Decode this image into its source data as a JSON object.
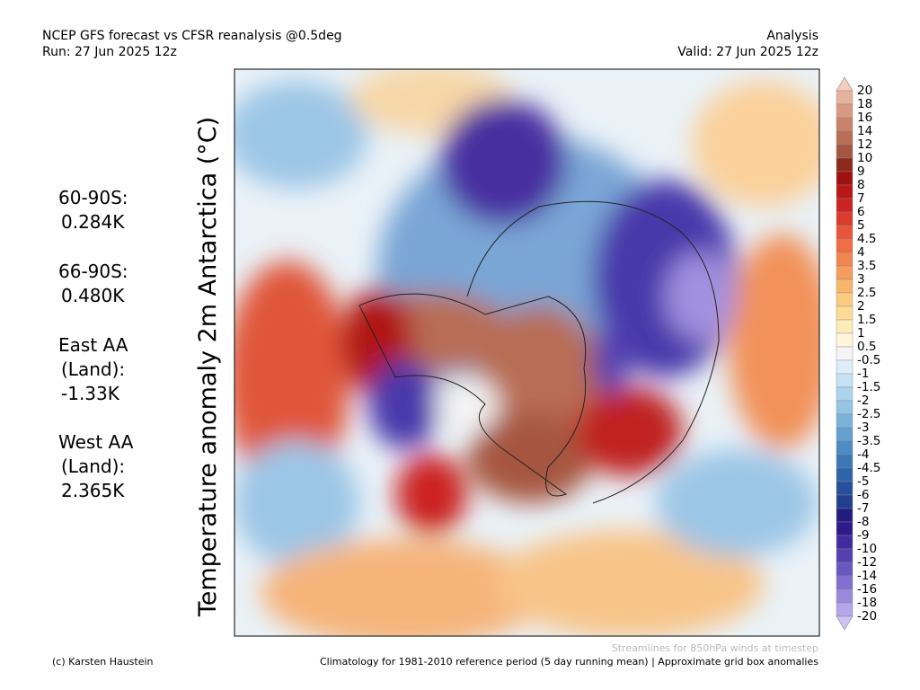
{
  "header": {
    "title": "NCEP GFS forecast vs CFSR reanalysis @0.5deg",
    "run": "Run: 27 Jun 2025 12z",
    "kind": "Analysis",
    "valid": "Valid: 27 Jun 2025 12z"
  },
  "vertical_title": "Temperature anomaly 2m Antarctica (°C)",
  "stats": [
    {
      "lines": [
        "60-90S:",
        "0.284K"
      ]
    },
    {
      "lines": [
        "66-90S:",
        "0.480K"
      ]
    },
    {
      "lines": [
        "East AA",
        "(Land):",
        "-1.33K"
      ]
    },
    {
      "lines": [
        "West AA",
        "(Land):",
        "2.365K"
      ]
    }
  ],
  "colorbar": {
    "labels": [
      "20",
      "18",
      "16",
      "14",
      "12",
      "10",
      "9",
      "8",
      "7",
      "6",
      "5",
      "4.5",
      "4",
      "3.5",
      "3",
      "2.5",
      "2",
      "1.5",
      "1",
      "0.5",
      "-0.5",
      "-1",
      "-1.5",
      "-2",
      "-2.5",
      "-3",
      "-3.5",
      "-4",
      "-4.5",
      "-5",
      "-6",
      "-7",
      "-8",
      "-9",
      "-10",
      "-12",
      "-14",
      "-16",
      "-18",
      "-20"
    ],
    "colors": [
      "#f5cdbd",
      "#e6b29e",
      "#d89a83",
      "#c9836b",
      "#b86d55",
      "#a65640",
      "#8e2a1c",
      "#a01010",
      "#b81818",
      "#cc2222",
      "#dc3a2a",
      "#e8553a",
      "#ef6e45",
      "#f28550",
      "#f59d5c",
      "#f8b66c",
      "#fbcb80",
      "#fddc98",
      "#feecb8",
      "#fff6dc",
      "#f5f5f5",
      "#ddeef8",
      "#c6e2f3",
      "#aed4ec",
      "#95c4e4",
      "#7cb2da",
      "#64a0d0",
      "#4e8cc5",
      "#3c78b8",
      "#2f64aa",
      "#27509c",
      "#223f8e",
      "#221c80",
      "#2e1a8a",
      "#402c9e",
      "#5440b0",
      "#6a58c2",
      "#8270d0",
      "#9a8ade",
      "#b4a6ea",
      "#cdc2f4"
    ]
  },
  "streamline_note": "Streamlines for 850hPa winds at timestep",
  "credit": "(c) Karsten Haustein",
  "climatology_note": "Climatology for 1981-2010 reference period (5 day running mean) | Approximate grid box anomalies"
}
